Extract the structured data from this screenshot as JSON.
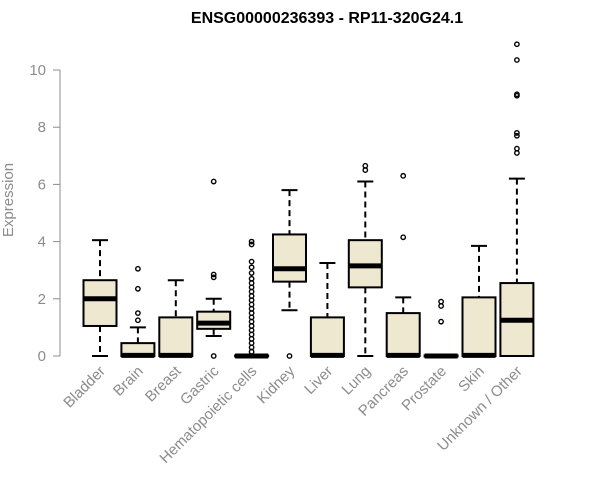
{
  "chart_data": {
    "type": "box",
    "title": "ENSG00000236393 - RP11-320G24.1",
    "ylabel": "Expression",
    "xlabel": "",
    "ylim": [
      0,
      10.5
    ],
    "yticks": [
      0,
      2,
      4,
      6,
      8,
      10
    ],
    "box_fill": "#efe8d0",
    "box_stroke": "#000000",
    "axis_color": "#8c8c8c",
    "categories": [
      "Bladder",
      "Brain",
      "Breast",
      "Gastric",
      "Hematopoietic cells",
      "Kidney",
      "Liver",
      "Lung",
      "Pancreas",
      "Prostate",
      "Skin",
      "Unknown / Other"
    ],
    "boxes": [
      {
        "category": "Bladder",
        "whisker_low": 0.0,
        "q1": 1.05,
        "median": 2.0,
        "q3": 2.65,
        "whisker_high": 4.05,
        "outliers": []
      },
      {
        "category": "Brain",
        "whisker_low": 0.0,
        "q1": 0.0,
        "median": 0.02,
        "q3": 0.45,
        "whisker_high": 1.0,
        "outliers": [
          1.25,
          1.5,
          2.35,
          3.05
        ]
      },
      {
        "category": "Breast",
        "whisker_low": 0.0,
        "q1": 0.0,
        "median": 0.02,
        "q3": 1.35,
        "whisker_high": 2.65,
        "outliers": []
      },
      {
        "category": "Gastric",
        "whisker_low": 0.7,
        "q1": 0.95,
        "median": 1.15,
        "q3": 1.55,
        "whisker_high": 2.0,
        "outliers": [
          0.0,
          2.75,
          2.85,
          6.1
        ]
      },
      {
        "category": "Hematopoietic cells",
        "whisker_low": 0.0,
        "q1": 0.0,
        "median": 0.0,
        "q3": 0.02,
        "whisker_high": 0.05,
        "outliers": [
          0.15,
          0.3,
          0.45,
          0.6,
          0.75,
          0.9,
          1.05,
          1.2,
          1.35,
          1.5,
          1.65,
          1.8,
          1.95,
          2.1,
          2.25,
          2.4,
          2.55,
          2.7,
          2.9,
          3.1,
          3.3,
          3.9,
          4.0
        ]
      },
      {
        "category": "Kidney",
        "whisker_low": 1.6,
        "q1": 2.6,
        "median": 3.05,
        "q3": 4.25,
        "whisker_high": 5.8,
        "outliers": [
          0.0
        ]
      },
      {
        "category": "Liver",
        "whisker_low": 0.0,
        "q1": 0.0,
        "median": 0.02,
        "q3": 1.35,
        "whisker_high": 3.25,
        "outliers": []
      },
      {
        "category": "Lung",
        "whisker_low": 0.0,
        "q1": 2.4,
        "median": 3.15,
        "q3": 4.05,
        "whisker_high": 6.1,
        "outliers": [
          6.5,
          6.65
        ]
      },
      {
        "category": "Pancreas",
        "whisker_low": 0.0,
        "q1": 0.0,
        "median": 0.02,
        "q3": 1.5,
        "whisker_high": 2.05,
        "outliers": [
          4.15,
          6.3
        ]
      },
      {
        "category": "Prostate",
        "whisker_low": 0.0,
        "q1": 0.0,
        "median": 0.0,
        "q3": 0.02,
        "whisker_high": 0.05,
        "outliers": [
          1.2,
          1.75,
          1.9
        ]
      },
      {
        "category": "Skin",
        "whisker_low": 0.0,
        "q1": 0.0,
        "median": 0.02,
        "q3": 2.05,
        "whisker_high": 3.85,
        "outliers": []
      },
      {
        "category": "Unknown / Other",
        "whisker_low": 0.0,
        "q1": 0.0,
        "median": 1.25,
        "q3": 2.55,
        "whisker_high": 6.2,
        "outliers": [
          7.1,
          7.25,
          7.7,
          7.8,
          9.1,
          9.15,
          10.35,
          10.9
        ]
      }
    ]
  }
}
